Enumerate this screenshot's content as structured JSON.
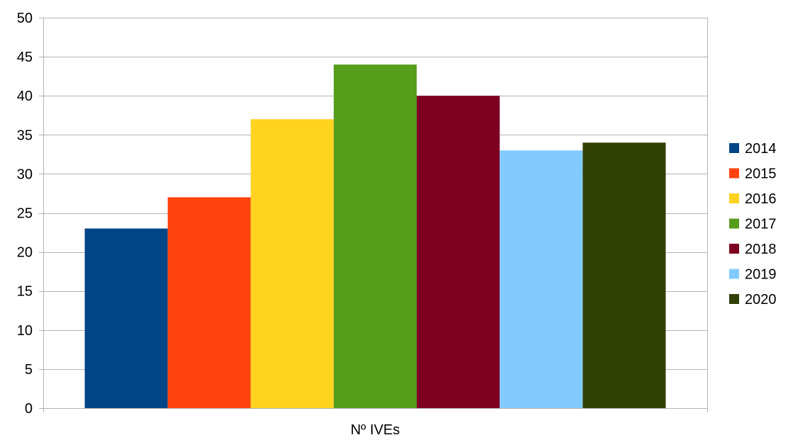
{
  "chart_data": {
    "type": "bar",
    "title": "",
    "xlabel": "",
    "ylabel": "",
    "categories": [
      "Nº IVEs"
    ],
    "ylim": [
      0,
      50
    ],
    "yticks": [
      0,
      5,
      10,
      15,
      20,
      25,
      30,
      35,
      40,
      45,
      50
    ],
    "grid": true,
    "legend_position": "right",
    "series": [
      {
        "name": "2014",
        "values": [
          23
        ],
        "color": "#004586"
      },
      {
        "name": "2015",
        "values": [
          27
        ],
        "color": "#ff420e"
      },
      {
        "name": "2016",
        "values": [
          37
        ],
        "color": "#ffd320"
      },
      {
        "name": "2017",
        "values": [
          44
        ],
        "color": "#579d1c"
      },
      {
        "name": "2018",
        "values": [
          40
        ],
        "color": "#7e0021"
      },
      {
        "name": "2019",
        "values": [
          33
        ],
        "color": "#83caff"
      },
      {
        "name": "2020",
        "values": [
          34
        ],
        "color": "#314004"
      }
    ]
  }
}
